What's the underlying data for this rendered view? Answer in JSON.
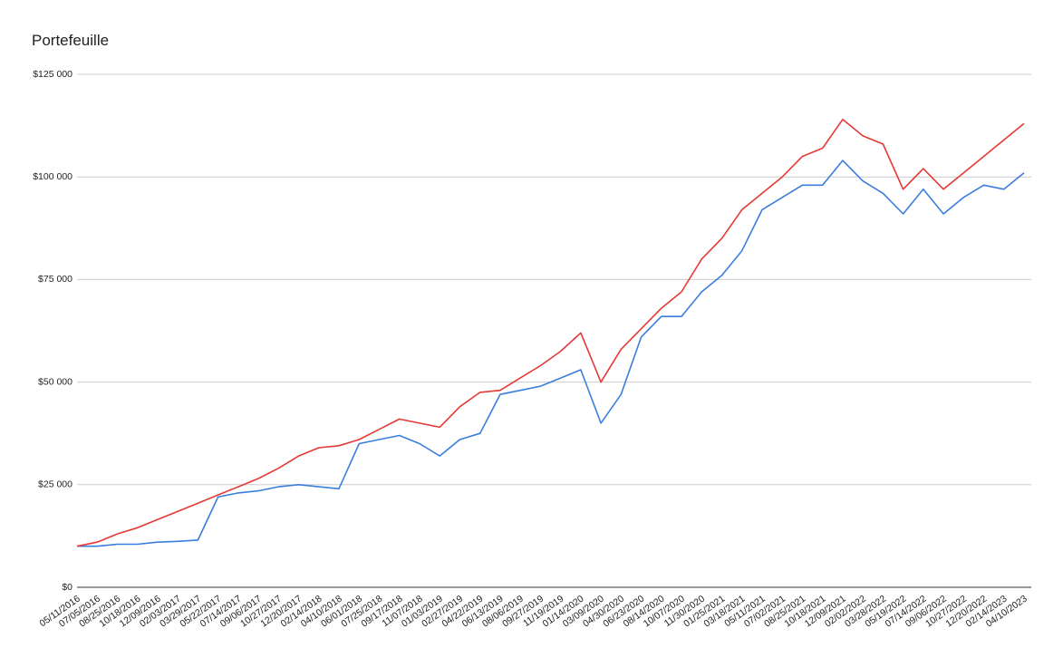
{
  "chart_data": {
    "type": "line",
    "title": "Portefeuille",
    "categories": [
      "05/11/2016",
      "07/05/2016",
      "08/25/2016",
      "10/18/2016",
      "12/09/2016",
      "02/03/2017",
      "03/29/2017",
      "05/22/2017",
      "07/14/2017",
      "09/06/2017",
      "10/27/2017",
      "12/20/2017",
      "02/14/2018",
      "04/10/2018",
      "06/01/2018",
      "07/25/2018",
      "09/17/2018",
      "11/07/2018",
      "01/03/2019",
      "02/27/2019",
      "04/22/2019",
      "06/13/2019",
      "08/06/2019",
      "09/27/2019",
      "11/19/2019",
      "01/14/2020",
      "03/09/2020",
      "04/30/2020",
      "06/23/2020",
      "08/14/2020",
      "10/07/2020",
      "11/30/2020",
      "01/25/2021",
      "03/18/2021",
      "05/11/2021",
      "07/02/2021",
      "08/25/2021",
      "10/18/2021",
      "12/09/2021",
      "02/02/2022",
      "03/28/2022",
      "05/19/2022",
      "07/14/2022",
      "09/06/2022",
      "10/27/2022",
      "12/20/2022",
      "02/14/2023",
      "04/10/2023"
    ],
    "series": [
      {
        "color": "#3b7ddd",
        "values": [
          10000,
          10000,
          10500,
          10500,
          11000,
          11200,
          11500,
          22000,
          23000,
          23500,
          24500,
          25000,
          24500,
          24000,
          35000,
          36000,
          37000,
          35000,
          32000,
          36000,
          37500,
          47000,
          48000,
          49000,
          51000,
          53000,
          40000,
          47000,
          61000,
          66000,
          66000,
          72000,
          76000,
          82000,
          92000,
          95000,
          98000,
          98000,
          104000,
          99000,
          96000,
          91000,
          97000,
          91000,
          95000,
          98000,
          97000,
          101000
        ]
      },
      {
        "color": "#e53935",
        "values": [
          10000,
          11000,
          13000,
          14500,
          16500,
          18500,
          20500,
          22500,
          24500,
          26500,
          29000,
          32000,
          34000,
          34500,
          36000,
          38500,
          41000,
          40000,
          39000,
          44000,
          47500,
          48000,
          51000,
          54000,
          57500,
          62000,
          50000,
          58000,
          63000,
          68000,
          72000,
          80000,
          85000,
          92000,
          96000,
          100000,
          105000,
          107000,
          114000,
          110000,
          108000,
          97000,
          102000,
          97000,
          101000,
          105000,
          109000,
          113000
        ]
      }
    ],
    "ylim": [
      0,
      125000
    ],
    "yticks": [
      {
        "value": 0,
        "label": "$0"
      },
      {
        "value": 25000,
        "label": "$25 000"
      },
      {
        "value": 50000,
        "label": "$50 000"
      },
      {
        "value": 75000,
        "label": "$75 000"
      },
      {
        "value": 100000,
        "label": "$100 000"
      },
      {
        "value": 125000,
        "label": "$125 000"
      }
    ],
    "grid": true
  }
}
